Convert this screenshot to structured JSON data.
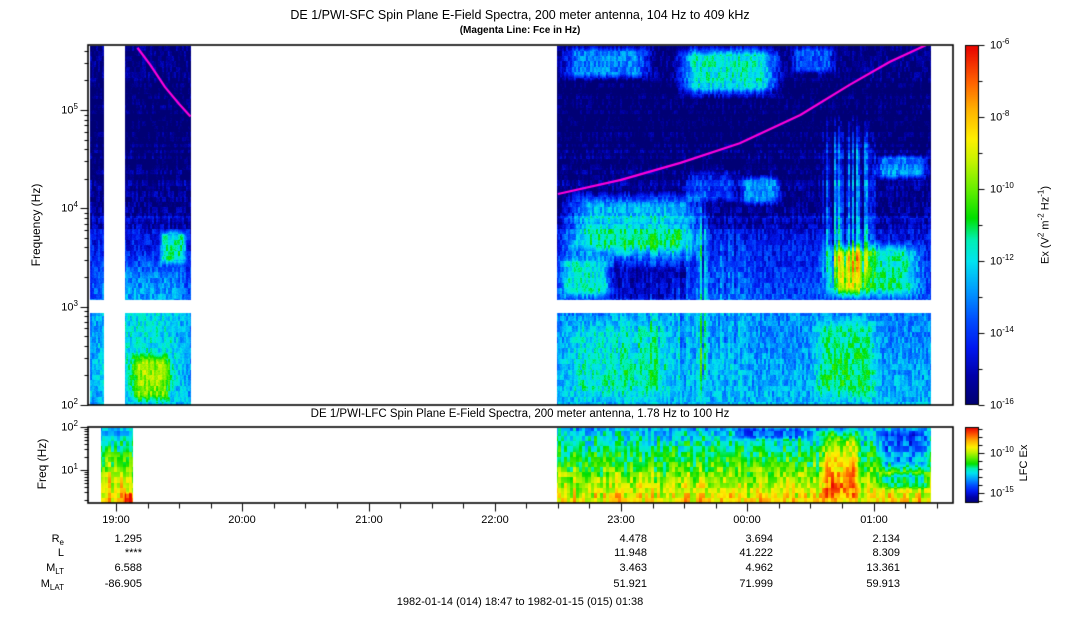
{
  "page": {
    "window_title": "DE 1 PWI survey spectrogram",
    "caption": "1982-01-14 (014) 18:47 to 1982-01-15 (015) 01:38"
  },
  "chart_data": [
    {
      "type": "heatmap",
      "id": "sfc-spectrogram",
      "title": "DE 1/PWI-SFC  Spin Plane E-Field Spectra, 200 meter antenna, 104 Hz to 409 kHz",
      "subtitle": "(Magenta Line: Fce in Hz)",
      "x_axis": {
        "start_label": "18:47",
        "end_label": "01:38",
        "tick_hours": [
          19,
          20,
          21,
          22,
          23,
          24,
          25
        ],
        "tick_labels": [
          "19:00",
          "20:00",
          "21:00",
          "22:00",
          "23:00",
          "00:00",
          "01:00"
        ],
        "minor_step_hours": 0.25
      },
      "y_axis": {
        "label": "Frequency (Hz)",
        "scale": "log",
        "min_hz": 100,
        "max_hz": 460000,
        "tick_exponents": [
          2,
          3,
          4,
          5
        ]
      },
      "colorbar": {
        "label_parts": [
          [
            "t",
            "Ex (V"
          ],
          [
            "s",
            "2"
          ],
          [
            "t",
            " m"
          ],
          [
            "s",
            "-2"
          ],
          [
            "t",
            " Hz"
          ],
          [
            "s",
            "-1"
          ],
          [
            "t",
            ")"
          ]
        ],
        "unit": "V^2 m^-2 Hz^-1",
        "tick_exponents": [
          -6,
          -8,
          -10,
          -12,
          -14,
          -16
        ]
      },
      "palette_stops": [
        [
          0,
          "#00006e"
        ],
        [
          0.08,
          "#0000a8"
        ],
        [
          0.16,
          "#0018f0"
        ],
        [
          0.24,
          "#0050ff"
        ],
        [
          0.32,
          "#009cff"
        ],
        [
          0.4,
          "#00e4f0"
        ],
        [
          0.46,
          "#00f0b4"
        ],
        [
          0.52,
          "#00e000"
        ],
        [
          0.6,
          "#66ee00"
        ],
        [
          0.68,
          "#c8f400"
        ],
        [
          0.74,
          "#fff000"
        ],
        [
          0.82,
          "#ffb400"
        ],
        [
          0.9,
          "#ff6000"
        ],
        [
          1,
          "#e80000"
        ]
      ],
      "blank_band_hz": [
        880,
        1170
      ],
      "data_segments_hours": [
        [
          18.79,
          18.9
        ],
        [
          19.07,
          19.59
        ],
        [
          22.49,
          25.45
        ]
      ],
      "fce_line": {
        "label": "Fce in Hz",
        "color": "#ff00dd",
        "segments_hz": [
          [
            [
              19.17,
              430000
            ],
            [
              19.27,
              290000
            ],
            [
              19.39,
              170000
            ],
            [
              19.5,
              115000
            ],
            [
              19.59,
              86000
            ]
          ],
          [
            [
              22.5,
              14000
            ],
            [
              23.0,
              19500
            ],
            [
              23.47,
              29000
            ],
            [
              23.94,
              46000
            ],
            [
              24.42,
              89000
            ],
            [
              24.81,
              180000
            ],
            [
              25.13,
              310000
            ],
            [
              25.42,
              460000
            ]
          ]
        ]
      },
      "features": [
        {
          "t0": 22.49,
          "t1": 23.28,
          "lf0": 5.3,
          "lf1": 5.67,
          "a": 0.26
        },
        {
          "t0": 23.4,
          "t1": 24.3,
          "lf0": 5.12,
          "lf1": 5.67,
          "a": 0.4
        },
        {
          "t0": 24.32,
          "t1": 24.72,
          "lf0": 5.36,
          "lf1": 5.67,
          "a": 0.2
        },
        {
          "t0": 22.49,
          "t1": 23.7,
          "lf0": 3.48,
          "lf1": 4.18,
          "a": 0.3
        },
        {
          "t0": 22.49,
          "t1": 22.95,
          "lf0": 3.07,
          "lf1": 3.55,
          "a": 0.22
        },
        {
          "t0": 22.82,
          "t1": 23.62,
          "lf0": 3.02,
          "lf1": 3.46,
          "a": -0.13
        },
        {
          "t0": 23.47,
          "t1": 23.95,
          "lf0": 4.05,
          "lf1": 4.4,
          "a": 0.15
        },
        {
          "t0": 23.92,
          "t1": 24.28,
          "lf0": 4.02,
          "lf1": 4.36,
          "a": 0.26
        },
        {
          "t0": 22.9,
          "t1": 24.1,
          "lf0": 2.0,
          "lf1": 3.9,
          "a": 0.1,
          "streak": 1
        },
        {
          "t0": 23.6,
          "t1": 23.74,
          "lf0": 2.0,
          "lf1": 4.3,
          "a": 0.22,
          "streak": 1
        },
        {
          "t0": 24.56,
          "t1": 25.04,
          "lf0": 3.07,
          "lf1": 5.0,
          "a": 0.34,
          "streak": 1
        },
        {
          "t0": 24.7,
          "t1": 24.92,
          "lf0": 3.07,
          "lf1": 3.62,
          "a": 0.16
        },
        {
          "t0": 24.55,
          "t1": 25.42,
          "lf0": 3.07,
          "lf1": 3.68,
          "a": 0.26
        },
        {
          "t0": 24.98,
          "t1": 25.45,
          "lf0": 4.28,
          "lf1": 4.56,
          "a": 0.28
        },
        {
          "t0": 24.5,
          "t1": 25.06,
          "lf0": 2.0,
          "lf1": 2.94,
          "a": 0.16
        },
        {
          "t0": 22.49,
          "t1": 23.45,
          "lf0": 2.0,
          "lf1": 2.94,
          "a": 0.1
        },
        {
          "t0": 19.33,
          "t1": 19.57,
          "lf0": 3.42,
          "lf1": 3.8,
          "a": 0.28
        },
        {
          "t0": 18.79,
          "t1": 19.59,
          "lf0": 2.0,
          "lf1": 3.6,
          "a": 0.1
        },
        {
          "t0": 19.1,
          "t1": 19.45,
          "lf0": 2.0,
          "lf1": 2.55,
          "a": 0.22
        }
      ]
    },
    {
      "type": "heatmap",
      "id": "lfc-spectrogram",
      "title": "DE 1/PWI-LFC  Spin Plane E-Field Spectra, 200 meter antenna, 1.78 Hz to 100 Hz",
      "y_axis": {
        "label": "Freq (Hz)",
        "scale": "log",
        "min_hz": 1.71,
        "max_hz": 100,
        "tick_exponents": [
          1,
          2
        ]
      },
      "colorbar": {
        "label": "LFC Ex",
        "tick_exponents": [
          -10,
          -15
        ]
      },
      "data_segments_hours": [
        [
          18.88,
          19.13
        ],
        [
          22.49,
          25.45
        ]
      ],
      "features": [
        {
          "t0": 24.58,
          "t1": 24.9,
          "lf0": 0.23,
          "lf1": 2.0,
          "a": 0.22
        },
        {
          "t0": 23.85,
          "t1": 24.5,
          "lf0": 1.72,
          "lf1": 2.0,
          "a": -0.14
        },
        {
          "t0": 25.02,
          "t1": 25.45,
          "lf0": 0.95,
          "lf1": 2.0,
          "a": -0.2
        },
        {
          "t0": 25.02,
          "t1": 25.45,
          "lf0": 0.55,
          "lf1": 0.95,
          "a": -0.18
        },
        {
          "t0": 18.88,
          "t1": 19.13,
          "lf0": 0.23,
          "lf1": 1.55,
          "a": 0.1,
          "streak": 1
        },
        {
          "t0": 19.06,
          "t1": 19.13,
          "lf0": 0.23,
          "lf1": 0.5,
          "a": 0.22
        }
      ]
    }
  ],
  "annotations": {
    "row_labels": [
      {
        "main": "R",
        "sub": "e"
      },
      {
        "main": "L",
        "sub": ""
      },
      {
        "main": "M",
        "sub": "LT"
      },
      {
        "main": "M",
        "sub": "LAT"
      }
    ],
    "columns": [
      {
        "hour": 19,
        "time": "19:00",
        "values": [
          "1.295",
          "****",
          "6.588",
          "-86.905"
        ]
      },
      {
        "hour": 23,
        "time": "23:00",
        "values": [
          "4.478",
          "11.948",
          "3.463",
          "51.921"
        ]
      },
      {
        "hour": 24,
        "time": "00:00",
        "values": [
          "3.694",
          "41.222",
          "4.962",
          "71.999"
        ]
      },
      {
        "hour": 25,
        "time": "01:00",
        "values": [
          "2.134",
          "8.309",
          "13.361",
          "59.913"
        ]
      }
    ],
    "caption": "1982-01-14 (014) 18:47 to 1982-01-15 (015) 01:38"
  }
}
